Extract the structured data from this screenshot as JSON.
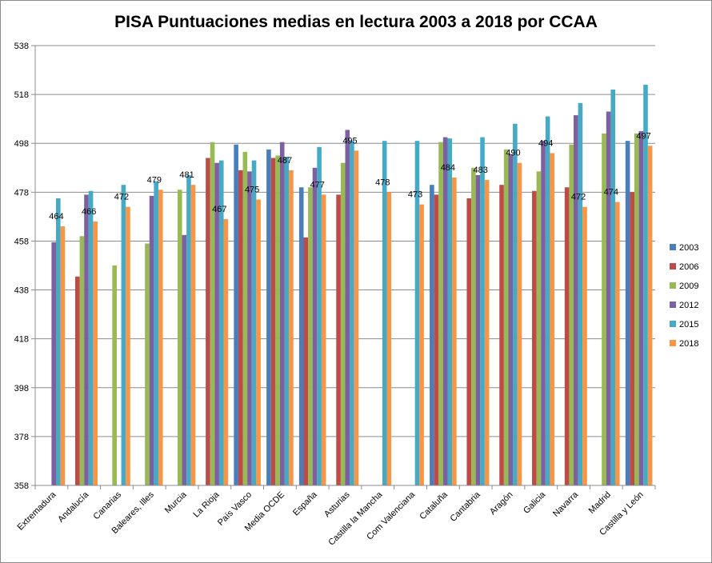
{
  "chart_data": {
    "type": "bar",
    "title": "PISA Puntuaciones medias en lectura 2003 a 2018 por CCAA",
    "ylim": [
      358,
      538
    ],
    "yticks": [
      358,
      378,
      398,
      418,
      438,
      458,
      478,
      498,
      518,
      538
    ],
    "grid": true,
    "legend_position": "right",
    "categories": [
      "Extremadura",
      "Andalucía",
      "Canarias",
      "Baleares, Illes",
      "Murcia",
      "La Rioja",
      "País Vasco",
      "Media OCDE",
      "España",
      "Asturias",
      "Castilla la Mancha",
      "Com Valenciana",
      "Cataluña",
      "Cantabria",
      "Aragón",
      "Galicia",
      "Navarra",
      "Madrid",
      "Castilla y León"
    ],
    "series": [
      {
        "name": "2003",
        "color": "#4a7ebb",
        "values": [
          null,
          null,
          null,
          null,
          null,
          null,
          497.5,
          495.5,
          480,
          null,
          null,
          null,
          481,
          null,
          null,
          null,
          null,
          null,
          499
        ]
      },
      {
        "name": "2006",
        "color": "#be4b48",
        "values": [
          null,
          443.5,
          null,
          null,
          null,
          492,
          487,
          492,
          459.5,
          477,
          null,
          null,
          477,
          475.5,
          481,
          478.5,
          480,
          null,
          478
        ]
      },
      {
        "name": "2009",
        "color": "#98b954",
        "values": [
          null,
          460,
          448,
          457,
          479,
          498.5,
          494.5,
          493,
          480,
          490,
          null,
          null,
          498.5,
          488,
          495.5,
          486.5,
          497.5,
          502,
          502
        ]
      },
      {
        "name": "2012",
        "color": "#7d60a0",
        "values": [
          457.5,
          477,
          null,
          476.5,
          460.5,
          490,
          486.5,
          498.5,
          488,
          503.5,
          null,
          null,
          500.5,
          485,
          493.5,
          499,
          509.5,
          511,
          503
        ]
      },
      {
        "name": "2015",
        "color": "#46aac5",
        "values": [
          475.5,
          478.5,
          481,
          482.5,
          485,
          491,
          491,
          492.5,
          496.5,
          499,
          499,
          499,
          500,
          500.5,
          506,
          509,
          514.5,
          520,
          522
        ]
      },
      {
        "name": "2018",
        "color": "#f79646",
        "values": [
          464,
          466,
          472,
          479,
          481,
          467,
          475,
          487,
          477,
          495,
          478,
          473,
          484,
          483,
          490,
          494,
          472,
          474,
          497
        ]
      }
    ],
    "data_labels": {
      "series": "2018",
      "values": [
        "464",
        "466",
        "472",
        "479",
        "481",
        "467",
        "475",
        "487",
        "477",
        "495",
        "478",
        "473",
        "484",
        "483",
        "490",
        "494",
        "472",
        "474",
        "497"
      ]
    }
  }
}
